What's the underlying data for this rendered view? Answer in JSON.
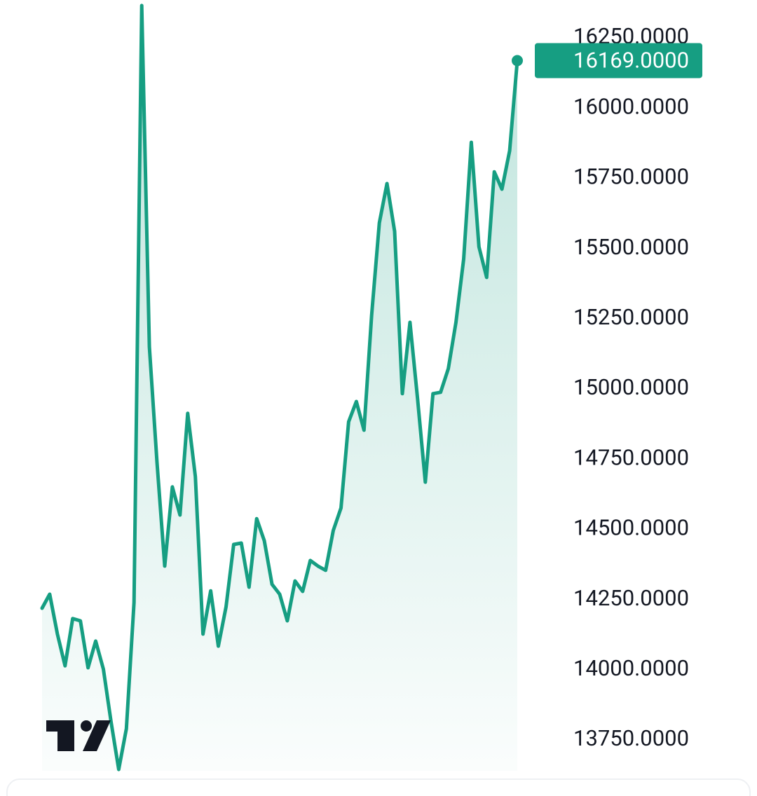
{
  "chart_data": {
    "type": "line",
    "color": "#169e82",
    "values": [
      14219,
      14269,
      14127,
      14014,
      14182,
      14174,
      14007,
      14102,
      14002,
      13815,
      13645,
      13790,
      14239,
      16365,
      15150,
      14738,
      14369,
      14651,
      14551,
      14913,
      14688,
      14127,
      14281,
      14084,
      14224,
      14446,
      14451,
      14294,
      14538,
      14459,
      14304,
      14269,
      14174,
      14316,
      14279,
      14389,
      14369,
      14354,
      14496,
      14576,
      14883,
      14955,
      14853,
      15262,
      15591,
      15731,
      15561,
      14983,
      15237,
      14963,
      14668,
      14983,
      14988,
      15072,
      15237,
      15462,
      15878,
      15506,
      15397,
      15773,
      15711,
      15848,
      16169
    ],
    "value_labels": [
      null,
      null,
      null,
      null,
      null,
      null,
      null,
      null,
      null,
      null,
      null,
      null,
      null,
      null,
      null,
      null,
      null,
      null,
      null,
      null,
      null,
      null,
      null,
      null,
      null,
      null,
      null,
      null,
      null,
      null,
      null,
      null,
      null,
      null,
      null,
      null,
      null,
      null,
      null,
      null,
      null,
      null,
      null,
      null,
      null,
      null,
      null,
      null,
      null,
      null,
      null,
      null,
      null,
      null,
      null,
      null,
      null,
      null,
      null,
      null,
      null,
      null,
      "16169.0000"
    ],
    "ylim": [
      13600,
      16400
    ],
    "yticks": [
      {
        "value": 13750,
        "label": "13750.0000"
      },
      {
        "value": 14000,
        "label": "14000.0000"
      },
      {
        "value": 14250,
        "label": "14250.0000"
      },
      {
        "value": 14500,
        "label": "14500.0000"
      },
      {
        "value": 14750,
        "label": "14750.0000"
      },
      {
        "value": 15000,
        "label": "15000.0000"
      },
      {
        "value": 15250,
        "label": "15250.0000"
      },
      {
        "value": 15500,
        "label": "15500.0000"
      },
      {
        "value": 15750,
        "label": "15750.0000"
      },
      {
        "value": 16000,
        "label": "16000.0000"
      },
      {
        "value": 16250,
        "label": "16250.0000"
      }
    ]
  }
}
